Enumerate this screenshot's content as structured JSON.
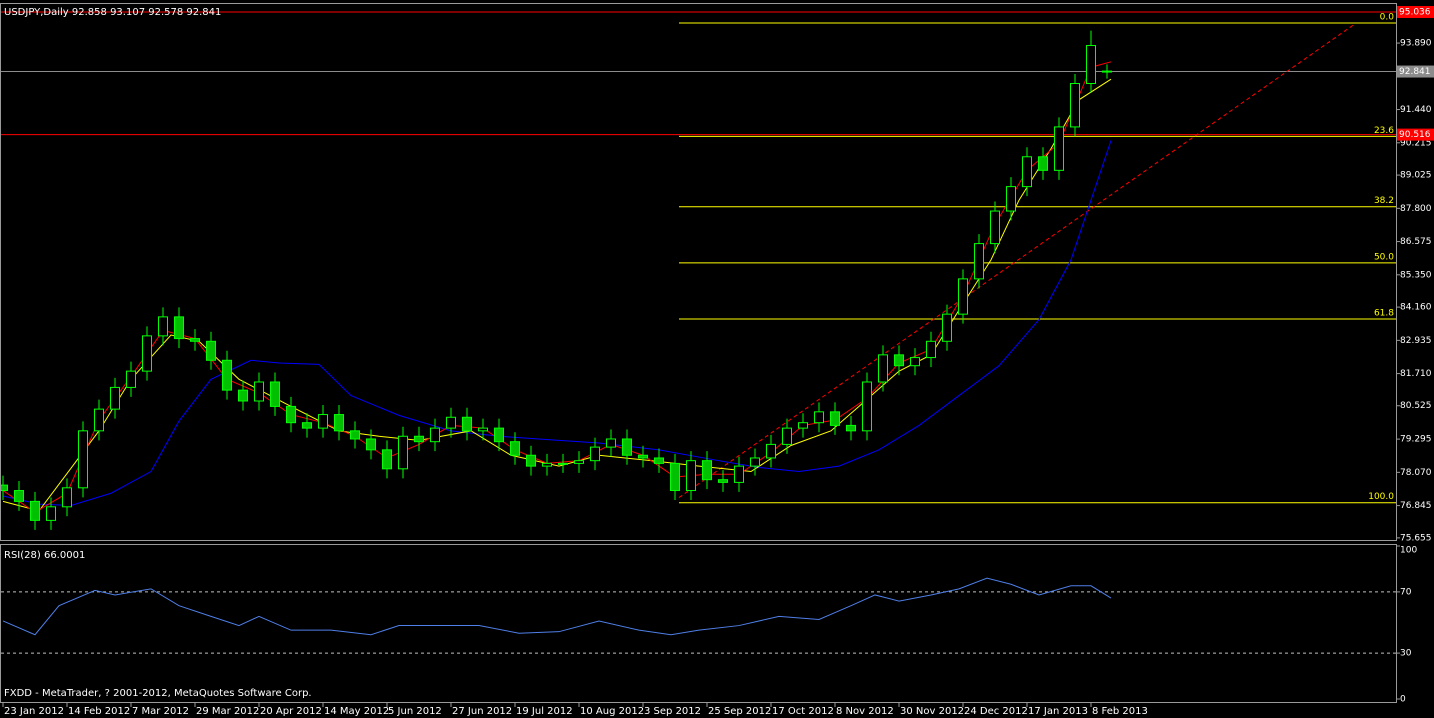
{
  "footer": "FXDD - MetaTrader, ? 2001-2012, MetaQuotes Software Corp.",
  "chart_data": [
    {
      "type": "candlestick",
      "title": "USDJPY,Daily  92.858 93.107 92.578 92.841",
      "xlim": [
        -0.75,
        348.25
      ],
      "xticks": [
        {
          "value": 0,
          "label": "23 Jan 2012"
        },
        {
          "value": 16,
          "label": "14 Feb 2012"
        },
        {
          "value": 32,
          "label": "7 Mar 2012"
        },
        {
          "value": 48,
          "label": "29 Mar 2012"
        },
        {
          "value": 64,
          "label": "20 Apr 2012"
        },
        {
          "value": 80,
          "label": "14 May 2012"
        },
        {
          "value": 96,
          "label": "5 Jun 2012"
        },
        {
          "value": 112,
          "label": "27 Jun 2012"
        },
        {
          "value": 128,
          "label": "19 Jul 2012"
        },
        {
          "value": 144,
          "label": "10 Aug 2012"
        },
        {
          "value": 160,
          "label": "3 Sep 2012"
        },
        {
          "value": 176,
          "label": "25 Sep 2012"
        },
        {
          "value": 192,
          "label": "17 Oct 2012"
        },
        {
          "value": 208,
          "label": "8 Nov 2012"
        },
        {
          "value": 224,
          "label": "30 Nov 2012"
        },
        {
          "value": 240,
          "label": "24 Dec 2012"
        },
        {
          "value": 256,
          "label": "17 Jan 2013"
        },
        {
          "value": 272,
          "label": "8 Feb 2013"
        }
      ],
      "ylim": [
        75.54,
        95.33
      ],
      "yticks": [
        {
          "value": 93.89,
          "label": "93.890"
        },
        {
          "value": 91.44,
          "label": "91.440"
        },
        90.215,
        89.025,
        {
          "value": 87.8,
          "label": "87.800"
        },
        86.575,
        {
          "value": 85.35,
          "label": "85.350"
        },
        {
          "value": 84.16,
          "label": "84.160"
        },
        82.935,
        {
          "value": 81.71,
          "label": "81.710"
        },
        80.525,
        79.295,
        {
          "value": 78.07,
          "label": "78.070"
        },
        76.845,
        75.655
      ],
      "grid": false,
      "colors": {
        "up_fill": "#000000",
        "down_fill": "#00c000",
        "outline": "#00ff00"
      },
      "x": [
        0,
        4,
        8,
        12,
        16,
        20,
        24,
        28,
        32,
        36,
        40,
        44,
        48,
        52,
        56,
        60,
        64,
        68,
        72,
        76,
        80,
        84,
        88,
        92,
        96,
        100,
        104,
        108,
        112,
        116,
        120,
        124,
        128,
        132,
        136,
        140,
        144,
        148,
        152,
        156,
        160,
        164,
        168,
        172,
        176,
        180,
        184,
        188,
        192,
        196,
        200,
        204,
        208,
        212,
        216,
        220,
        224,
        228,
        232,
        236,
        240,
        244,
        248,
        252,
        256,
        260,
        264,
        268,
        272,
        276
      ],
      "open": [
        77.6,
        77.4,
        77.0,
        76.3,
        76.8,
        77.5,
        79.6,
        80.4,
        81.2,
        81.8,
        83.1,
        83.8,
        83.0,
        82.9,
        82.2,
        81.1,
        80.7,
        81.4,
        80.5,
        79.9,
        79.7,
        80.2,
        79.6,
        79.3,
        78.9,
        78.2,
        79.4,
        79.2,
        79.7,
        80.1,
        79.6,
        79.7,
        79.2,
        78.7,
        78.3,
        78.4,
        78.4,
        78.5,
        79.0,
        79.3,
        78.7,
        78.6,
        78.4,
        77.4,
        78.5,
        77.8,
        77.7,
        78.3,
        78.6,
        79.1,
        79.7,
        79.9,
        80.3,
        79.8,
        79.6,
        81.4,
        82.4,
        82.0,
        82.3,
        82.9,
        83.9,
        85.2,
        86.5,
        87.7,
        88.6,
        89.7,
        89.2,
        90.8,
        92.4,
        92.858
      ],
      "high": [
        77.95,
        77.75,
        77.35,
        77.15,
        77.85,
        79.95,
        80.75,
        81.55,
        82.15,
        83.45,
        84.15,
        84.15,
        83.35,
        83.25,
        82.55,
        81.45,
        81.75,
        81.75,
        80.85,
        80.25,
        80.55,
        80.55,
        79.95,
        79.65,
        79.25,
        79.75,
        79.75,
        80.05,
        80.45,
        80.45,
        80.05,
        80.05,
        79.55,
        79.05,
        78.75,
        78.75,
        78.85,
        79.35,
        79.65,
        79.65,
        79.05,
        78.95,
        78.75,
        78.85,
        78.85,
        78.15,
        78.65,
        78.95,
        79.45,
        80.05,
        80.25,
        80.65,
        80.65,
        80.15,
        81.75,
        82.75,
        82.75,
        82.65,
        83.25,
        84.25,
        85.55,
        86.85,
        88.05,
        88.95,
        90.05,
        90.05,
        91.15,
        92.75,
        94.35,
        93.107
      ],
      "low": [
        77.05,
        76.65,
        75.95,
        75.95,
        76.45,
        77.15,
        79.25,
        80.05,
        80.85,
        81.45,
        82.75,
        82.65,
        82.55,
        81.85,
        80.75,
        80.35,
        80.35,
        80.15,
        79.55,
        79.35,
        79.35,
        79.25,
        78.95,
        78.55,
        77.85,
        77.85,
        78.85,
        78.85,
        79.35,
        79.25,
        79.25,
        78.85,
        78.35,
        77.95,
        77.95,
        78.05,
        78.05,
        78.15,
        78.65,
        78.35,
        78.25,
        78.05,
        77.05,
        77.05,
        77.45,
        77.35,
        77.35,
        77.95,
        78.25,
        78.75,
        79.35,
        79.55,
        79.45,
        79.25,
        79.25,
        81.05,
        81.65,
        81.65,
        81.95,
        82.55,
        83.55,
        84.85,
        86.15,
        87.35,
        88.25,
        88.85,
        88.85,
        90.45,
        92.05,
        92.578
      ],
      "close": [
        77.4,
        77.0,
        76.3,
        76.8,
        77.5,
        79.6,
        80.4,
        81.2,
        81.8,
        83.1,
        83.8,
        83.0,
        82.9,
        82.2,
        81.1,
        80.7,
        81.4,
        80.5,
        79.9,
        79.7,
        80.2,
        79.6,
        79.3,
        78.9,
        78.2,
        79.4,
        79.2,
        79.7,
        80.1,
        79.6,
        79.7,
        79.2,
        78.7,
        78.3,
        78.4,
        78.4,
        78.5,
        79.0,
        79.3,
        78.7,
        78.6,
        78.4,
        77.4,
        78.5,
        77.8,
        77.7,
        78.3,
        78.6,
        79.1,
        79.7,
        79.9,
        80.3,
        79.8,
        79.6,
        81.4,
        82.4,
        82.0,
        82.3,
        82.9,
        83.9,
        85.2,
        86.5,
        87.7,
        88.6,
        89.7,
        89.2,
        90.8,
        92.4,
        93.8,
        92.841
      ],
      "moving_averages": [
        {
          "color": "#0000ff",
          "x": [
            0,
            9,
            17,
            27,
            37,
            44,
            52,
            62,
            69,
            79,
            87,
            99,
            112,
            124,
            139,
            149,
            164,
            179,
            189,
            199,
            209,
            219,
            229,
            239,
            249,
            259,
            267,
            277
          ],
          "values": [
            77.2,
            76.9,
            76.85,
            77.3,
            78.1,
            79.96,
            81.5,
            82.2,
            82.1,
            82.05,
            80.9,
            80.17,
            79.6,
            79.4,
            79.25,
            79.15,
            78.9,
            78.5,
            78.25,
            78.1,
            78.3,
            78.9,
            79.8,
            80.9,
            82.0,
            83.7,
            85.9,
            90.3
          ]
        },
        {
          "color": "#ffff00",
          "x": [
            0,
            9,
            24,
            32,
            42,
            49,
            59,
            72,
            84,
            94,
            104,
            117,
            127,
            139,
            149,
            162,
            174,
            187,
            197,
            207,
            214,
            224,
            232,
            239,
            247,
            254,
            262,
            269,
            277
          ],
          "values": [
            77.0,
            76.65,
            79.6,
            81.5,
            83.13,
            82.9,
            81.5,
            80.5,
            79.6,
            79.4,
            79.25,
            79.6,
            78.7,
            78.3,
            78.7,
            78.5,
            78.3,
            78.1,
            79.06,
            79.6,
            80.5,
            81.8,
            82.4,
            84.05,
            85.9,
            88.1,
            90.0,
            91.8,
            92.56
          ]
        },
        {
          "color": "#ff0000",
          "x": [
            0,
            8,
            16,
            24,
            32,
            40,
            48,
            56,
            64,
            72,
            80,
            88,
            96,
            104,
            112,
            120,
            128,
            136,
            144,
            152,
            160,
            168,
            176,
            184,
            192,
            200,
            208,
            216,
            224,
            232,
            240,
            248,
            256,
            264,
            272,
            277
          ],
          "values": [
            77.4,
            76.6,
            77.3,
            80.0,
            81.6,
            83.3,
            83.0,
            81.5,
            81.0,
            80.2,
            79.9,
            79.4,
            78.6,
            79.1,
            79.8,
            79.7,
            78.9,
            78.4,
            78.5,
            79.1,
            78.7,
            77.9,
            78.0,
            78.0,
            78.8,
            79.8,
            80.0,
            80.8,
            82.1,
            82.6,
            84.6,
            87.2,
            89.2,
            90.2,
            93.0,
            93.2
          ]
        }
      ],
      "price_lines": [
        {
          "value": 95.036,
          "color": "#ff0000"
        },
        {
          "value": 92.841,
          "color": "#8c8c8c"
        },
        {
          "value": 90.516,
          "color": "#ff0000"
        }
      ],
      "fibonacci": {
        "color": "#ffff00",
        "x_start": 169,
        "levels": [
          {
            "label": "0.0",
            "value": 94.63
          },
          {
            "label": "23.6",
            "value": 90.45
          },
          {
            "label": "38.2",
            "value": 87.86
          },
          {
            "label": "50.0",
            "value": 85.79
          },
          {
            "label": "61.8",
            "value": 83.72
          },
          {
            "label": "100.0",
            "value": 76.95
          }
        ]
      },
      "trendline": {
        "color": "#ff0000",
        "x": [
          169,
          338
        ],
        "values": [
          77.14,
          94.6
        ]
      }
    },
    {
      "type": "line",
      "title": "RSI(28) 66.0001",
      "xlim": [
        -0.75,
        348.25
      ],
      "ylim": [
        0,
        100
      ],
      "yticks": [
        0,
        30,
        70,
        100
      ],
      "series": [
        {
          "color": "#4f7fe8",
          "x": [
            0,
            8,
            14,
            23,
            28,
            37,
            44,
            52,
            59,
            64,
            72,
            82,
            92,
            99,
            109,
            119,
            129,
            139,
            149,
            159,
            167,
            174,
            184,
            194,
            204,
            212,
            218,
            224,
            232,
            239,
            246,
            252,
            259,
            267,
            272,
            277
          ],
          "values": [
            51,
            42,
            61,
            71,
            68,
            72,
            61,
            54,
            48,
            54,
            45,
            45,
            42,
            48,
            48,
            48,
            43,
            44,
            51,
            45,
            42,
            45,
            48,
            54,
            52,
            61,
            68,
            64,
            68,
            72,
            79,
            75,
            68,
            74,
            74,
            66.0001
          ]
        }
      ]
    }
  ]
}
